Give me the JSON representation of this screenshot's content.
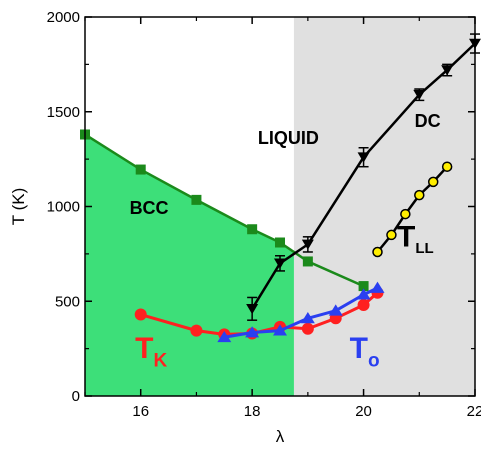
{
  "chart_data": {
    "type": "line",
    "xlabel": "λ",
    "ylabel": "T (K)",
    "xlim": [
      15,
      22
    ],
    "ylim": [
      0,
      2000
    ],
    "x_ticks": [
      16,
      18,
      20,
      22
    ],
    "y_ticks": [
      0,
      500,
      1000,
      1500,
      2000
    ],
    "grid": false,
    "colors": {
      "bcc_region": "#3ddf79",
      "liquid_region": "#ffffff",
      "dc_region": "#e0e0e0",
      "bcc_line": "#1b8a1b",
      "dc_line": "#000000",
      "tk": "#ff2020",
      "to": "#2a3ff0",
      "tll": "#ffee00"
    },
    "region_boundary_x": 18.75,
    "regions": [
      {
        "label": "BCC",
        "x": 15.8,
        "y": 960
      },
      {
        "label": "LIQUID",
        "x": 18.65,
        "y": 1330
      },
      {
        "label": "DC",
        "x": 21.15,
        "y": 1420
      }
    ],
    "series": [
      {
        "id": "bcc",
        "x": [
          15.0,
          16.0,
          17.0,
          18.0,
          18.5,
          19.0,
          20.0
        ],
        "y": [
          1380,
          1195,
          1035,
          880,
          810,
          710,
          580
        ],
        "marker": "square"
      },
      {
        "id": "dc",
        "x": [
          18.0,
          18.5,
          19.0,
          20.0,
          21.0,
          21.5,
          22.0
        ],
        "y": [
          460,
          700,
          800,
          1260,
          1590,
          1720,
          1860
        ],
        "yerr": [
          60,
          40,
          40,
          50,
          30,
          30,
          50
        ],
        "marker": "triangle-down"
      },
      {
        "id": "tll",
        "name_main": "T",
        "name_sub": "LL",
        "x": [
          20.25,
          20.5,
          20.75,
          21.0,
          21.25,
          21.5
        ],
        "y": [
          760,
          850,
          960,
          1060,
          1130,
          1210
        ],
        "marker": "circle"
      },
      {
        "id": "tk",
        "name_main": "T",
        "name_sub": "K",
        "x": [
          16.0,
          17.0,
          17.5,
          18.0,
          18.5,
          19.0,
          19.5,
          20.0,
          20.25
        ],
        "y": [
          430,
          345,
          325,
          330,
          365,
          355,
          410,
          480,
          545
        ],
        "marker": "circle"
      },
      {
        "id": "to",
        "name_main": "T",
        "name_sub": "o",
        "x": [
          17.5,
          18.0,
          18.5,
          19.0,
          19.5,
          20.0,
          20.25
        ],
        "y": [
          310,
          335,
          345,
          410,
          450,
          535,
          570
        ],
        "marker": "triangle-up"
      }
    ]
  }
}
